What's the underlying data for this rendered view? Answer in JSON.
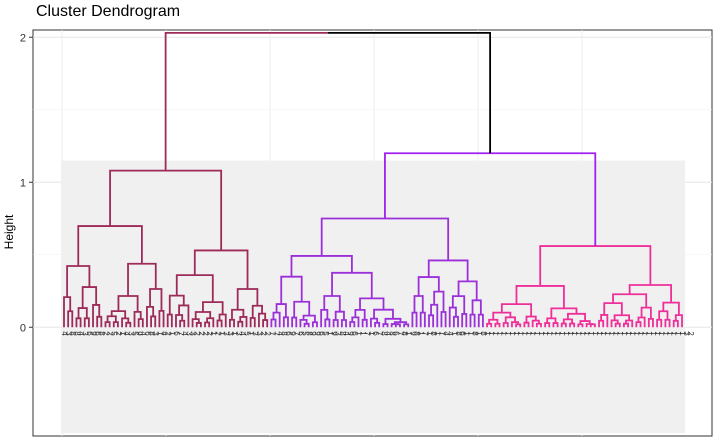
{
  "chart_data": {
    "type": "dendrogram",
    "title": "Cluster Dendrogram",
    "xlabel": "",
    "ylabel": "Height",
    "ylim": [
      -0.75,
      2.05
    ],
    "yticks": [
      0,
      1,
      2
    ],
    "grid": true,
    "leaf_count": 150,
    "root_height": 2.03,
    "clusters": [
      {
        "color": "#9e2a5a",
        "leaf_range": [
          1,
          50
        ],
        "merge_height": 1.08
      },
      {
        "color": "#9b30d9",
        "leaf_range": [
          51,
          102
        ],
        "merge_height": 0.75
      },
      {
        "color": "#ee2f9a",
        "leaf_range": [
          103,
          150
        ],
        "merge_height": 0.56
      }
    ],
    "upper_links": [
      {
        "children": [
          "cluster-2",
          "cluster-3"
        ],
        "height": 1.2,
        "color": "#a020f0"
      },
      {
        "children": [
          "cluster-1",
          "cluster-2-3"
        ],
        "height": 2.03,
        "color": "#000000"
      }
    ],
    "leaf_labels": [
      "4",
      "3",
      "8",
      "8",
      "4",
      "3",
      "6",
      "9",
      "6",
      "8",
      "2",
      "2",
      "5",
      "2",
      "1",
      "4",
      "3",
      "5",
      "9",
      "4",
      "6",
      "8",
      "3",
      "1",
      "4",
      "2",
      "1",
      "6",
      "7",
      "4",
      "3",
      "3",
      "2",
      "2",
      "2",
      "2",
      "1",
      "2",
      "1",
      "3",
      "3",
      "1",
      "3",
      "4",
      "5",
      "1",
      "3",
      "3",
      "2",
      "2",
      "7",
      "7",
      "4",
      "8",
      "6",
      "9",
      "7",
      "6",
      "5",
      "8",
      "9",
      "9",
      "6",
      "5",
      "1",
      "9",
      "3",
      "8",
      "4",
      "9",
      "6",
      "1",
      "1",
      "7",
      "1",
      "6",
      "7",
      "8",
      "4",
      "8",
      "6",
      "7",
      "8",
      "1",
      "9",
      "8",
      "1",
      "7",
      "1",
      "8",
      "1",
      "1",
      "4",
      "4",
      "1",
      "8",
      "6",
      "1",
      "1",
      "8",
      "1",
      "8",
      "1",
      "1",
      "1",
      "1",
      "1",
      "1",
      "1",
      "1",
      "1",
      "1",
      "1",
      "1",
      "1",
      "1",
      "1",
      "1",
      "1",
      "1",
      "1",
      "1",
      "1",
      "1",
      "1",
      "1",
      "1",
      "1",
      "1",
      "1",
      "1",
      "1",
      "1",
      "1",
      "1",
      "1",
      "1",
      "1",
      "1",
      "1",
      "1",
      "1",
      "1",
      "1",
      "1",
      "1",
      "1",
      "1",
      "1",
      "1",
      "3",
      "2"
    ]
  }
}
